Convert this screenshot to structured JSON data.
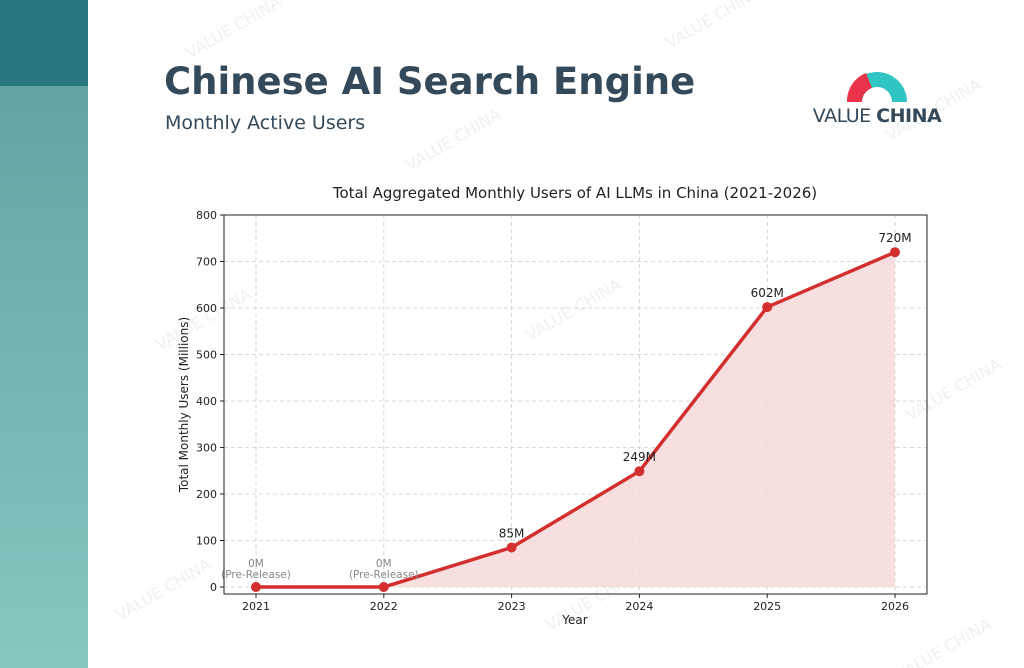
{
  "header": {
    "title": "Chinese AI Search Engine",
    "subtitle": "Monthly Active Users"
  },
  "logo": {
    "text_regular": "VALUE ",
    "text_bold": "CHINA",
    "watermark_text": "VALUE CHINA",
    "colors": {
      "red": "#e8334a",
      "teal": "#2ec5c3",
      "text": "#34495a"
    }
  },
  "colors": {
    "sidebar_top": "#27787e",
    "sidebar_gradient": [
      "#5f9ea1",
      "#86c7bf"
    ],
    "line": "#d32f2f",
    "area_fill": "#f6d9da",
    "grid": "#cccccc"
  },
  "chart_data": {
    "type": "line",
    "title": "Total Aggregated Monthly Users of AI LLMs in China (2021-2026)",
    "xlabel": "Year",
    "ylabel": "Total Monthly Users (Millions)",
    "x": [
      "2021",
      "2022",
      "2023",
      "2024",
      "2025",
      "2026"
    ],
    "values": [
      0,
      0,
      85,
      249,
      602,
      720
    ],
    "data_labels": [
      "0M\n(Pre-Release)",
      "0M\n(Pre-Release)",
      "85M",
      "249M",
      "602M",
      "720M"
    ],
    "ylim": [
      -15,
      800
    ],
    "yticks": [
      0,
      100,
      200,
      300,
      400,
      500,
      600,
      700,
      800
    ],
    "grid": true,
    "area_filled": true
  }
}
